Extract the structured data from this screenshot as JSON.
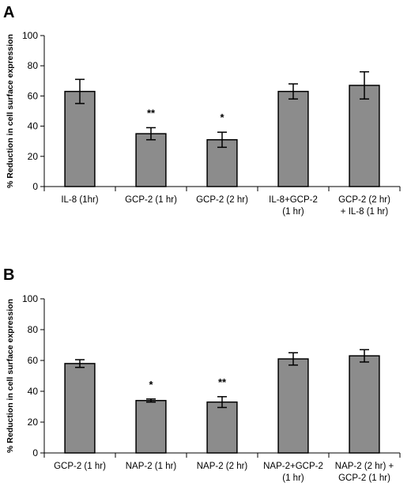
{
  "panels": [
    {
      "letter": "A",
      "ylabel": "% Reduction in cell surface expression",
      "ylim": [
        0,
        100
      ],
      "yticks": [
        0,
        20,
        40,
        60,
        80,
        100
      ]
    },
    {
      "letter": "B",
      "ylabel": "% Reduction in cell surface expression",
      "ylim": [
        0,
        100
      ],
      "yticks": [
        0,
        20,
        40,
        60,
        80,
        100
      ]
    }
  ],
  "chart_data": [
    {
      "type": "bar",
      "title": "",
      "xlabel": "",
      "ylabel": "% Reduction in cell surface expression",
      "ylim": [
        0,
        100
      ],
      "grid": false,
      "categories": [
        [
          "IL-8 (1hr)"
        ],
        [
          "GCP-2 (1 hr)"
        ],
        [
          "GCP-2 (2 hr)"
        ],
        [
          "IL-8+GCP-2",
          "(1 hr)"
        ],
        [
          "GCP-2 (2 hr)",
          "+ IL-8 (1 hr)"
        ]
      ],
      "values": [
        63,
        35,
        31,
        63,
        67
      ],
      "errors": [
        8,
        4,
        5,
        5,
        9
      ],
      "annotations": [
        "",
        "**",
        "*",
        "",
        ""
      ],
      "bar_color": "#8c8c8c"
    },
    {
      "type": "bar",
      "title": "",
      "xlabel": "",
      "ylabel": "% Reduction in cell surface expression",
      "ylim": [
        0,
        100
      ],
      "grid": false,
      "categories": [
        [
          "GCP-2 (1 hr)"
        ],
        [
          "NAP-2 (1 hr)"
        ],
        [
          "NAP-2 (2 hr)"
        ],
        [
          "NAP-2+GCP-2",
          "(1 hr)"
        ],
        [
          "NAP-2 (2 hr) +",
          "GCP-2 (1 hr)"
        ]
      ],
      "values": [
        58,
        34,
        33,
        61,
        63
      ],
      "errors": [
        2.5,
        1,
        3.5,
        4,
        4
      ],
      "annotations": [
        "",
        "*",
        "**",
        "",
        ""
      ],
      "bar_color": "#8c8c8c"
    }
  ]
}
